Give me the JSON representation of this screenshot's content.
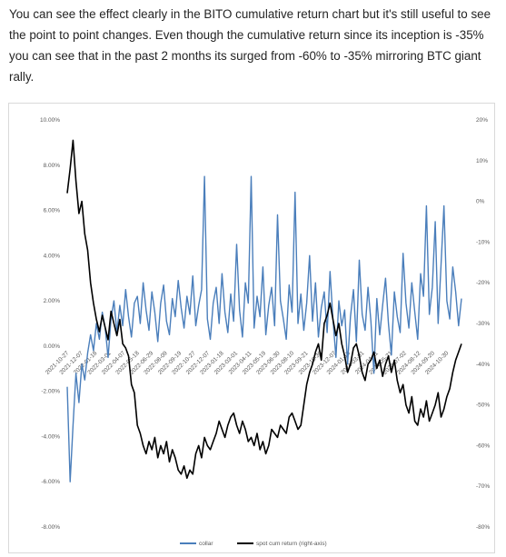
{
  "post": {
    "paragraph": "You can see the effect clearly in the BITO cumulative return chart but it's still useful to see the point to point changes. Even though the cumulative return since its inception is -35% you can see that in the past 2 months its surged from -60% to -35% mirroring BTC giant rally."
  },
  "colors": {
    "collar": "#4a7ebb",
    "spot": "#000000",
    "axis_text": "#595959",
    "frame": "#d9d9d9"
  },
  "chart_data": {
    "type": "line",
    "title": "",
    "left_axis": {
      "ticks": [
        "10.00%",
        "8.00%",
        "6.00%",
        "4.00%",
        "2.00%",
        "0.00%",
        "-2.00%",
        "-4.00%",
        "-6.00%",
        "-8.00%"
      ],
      "ylim": [
        -8,
        10
      ],
      "unit": "%"
    },
    "right_axis": {
      "ticks": [
        "20%",
        "10%",
        "0%",
        "-10%",
        "-20%",
        "-30%",
        "-40%",
        "-50%",
        "-60%",
        "-70%",
        "-80%"
      ],
      "ylim": [
        -80,
        20
      ],
      "unit": "%"
    },
    "x_ticks": [
      "2021-10-27",
      "2021-12-07",
      "2022-01-18",
      "2022-03-01",
      "2022-04-07",
      "2022-05-18",
      "2022-06-29",
      "2022-08-09",
      "2022-09-19",
      "2022-10-27",
      "2022-12-07",
      "2023-01-18",
      "2023-03-01",
      "2023-04-11",
      "2023-05-19",
      "2023-06-30",
      "2023-08-10",
      "2023-09-21",
      "2023-10-30",
      "2023-12-07",
      "2024-01-18",
      "2024-03-01",
      "2024-04-11",
      "2024-05-21",
      "2024-07-02",
      "2024-08-12",
      "2024-09-20",
      "2024-10-30"
    ],
    "legend": {
      "position": "bottom",
      "entries": [
        "collar",
        "spot cum return (right-axis)"
      ]
    },
    "grid": false,
    "series": [
      {
        "name": "collar",
        "axis": "left",
        "color": "#4a7ebb",
        "x": [
          0,
          2,
          4,
          6,
          8,
          10,
          12,
          14,
          16,
          18,
          20,
          22,
          24,
          26,
          28,
          30,
          32,
          34,
          36,
          38,
          40,
          42,
          44,
          46,
          48,
          50,
          52,
          54,
          56,
          58,
          60,
          62,
          64,
          66,
          68,
          70,
          72,
          74,
          76,
          78,
          80,
          82,
          84,
          86,
          88,
          90,
          92,
          94,
          96,
          98,
          100,
          102,
          104,
          106,
          108,
          110,
          112,
          114,
          116,
          118,
          120,
          122,
          124,
          126,
          128,
          130,
          132,
          134,
          136,
          138,
          140,
          142,
          144,
          146,
          148,
          150,
          152,
          154,
          156,
          158,
          160,
          162,
          164,
          166,
          168,
          170,
          172,
          174,
          176,
          178,
          180,
          182,
          184,
          186,
          188,
          190,
          192,
          194,
          196,
          198,
          200,
          202,
          204,
          206,
          208,
          210,
          212,
          214,
          216,
          218,
          220,
          222,
          224,
          226,
          228,
          230,
          232,
          234,
          236,
          238,
          240,
          242,
          244,
          246,
          248,
          250,
          252,
          254,
          256,
          258,
          260,
          262,
          264,
          266,
          268,
          270
        ],
        "values": [
          -1.8,
          -6.0,
          -3.5,
          -1.2,
          -2.5,
          -0.8,
          -1.5,
          -0.3,
          0.5,
          -0.2,
          1.0,
          0.3,
          1.5,
          0.8,
          -0.5,
          1.2,
          2.0,
          0.6,
          1.8,
          0.9,
          2.5,
          1.3,
          0.4,
          1.9,
          2.2,
          1.0,
          2.8,
          1.6,
          0.7,
          2.4,
          1.5,
          0.2,
          1.9,
          2.7,
          1.1,
          0.5,
          2.1,
          1.3,
          2.9,
          1.7,
          0.8,
          2.2,
          1.4,
          3.1,
          0.9,
          1.8,
          2.5,
          7.5,
          1.2,
          0.3,
          1.9,
          2.6,
          1.0,
          3.2,
          1.5,
          0.6,
          2.3,
          1.1,
          4.5,
          1.6,
          0.4,
          2.8,
          1.9,
          7.5,
          0.8,
          2.2,
          1.3,
          3.5,
          0.5,
          1.8,
          2.6,
          0.9,
          5.8,
          2.0,
          1.2,
          0.3,
          2.7,
          1.5,
          6.8,
          1.0,
          2.3,
          0.7,
          1.9,
          4.0,
          1.1,
          2.8,
          0.4,
          1.7,
          2.4,
          0.6,
          3.3,
          1.2,
          -0.5,
          2.0,
          0.9,
          1.6,
          -0.8,
          1.3,
          2.5,
          0.2,
          3.8,
          1.4,
          0.7,
          2.6,
          1.1,
          -1.2,
          2.1,
          0.5,
          1.8,
          3.0,
          1.0,
          -0.4,
          2.4,
          1.3,
          0.6,
          4.1,
          1.9,
          0.8,
          2.8,
          1.5,
          0.3,
          3.2,
          2.2,
          6.2,
          1.4,
          2.6,
          5.5,
          1.0,
          3.6,
          6.2,
          2.0,
          1.2,
          3.5,
          2.4,
          0.9,
          2.1
        ]
      },
      {
        "name": "spot cum return (right-axis)",
        "axis": "right",
        "color": "#000000",
        "x": [
          0,
          2,
          4,
          6,
          8,
          10,
          12,
          14,
          16,
          18,
          20,
          22,
          24,
          26,
          28,
          30,
          32,
          34,
          36,
          38,
          40,
          42,
          44,
          46,
          48,
          50,
          52,
          54,
          56,
          58,
          60,
          62,
          64,
          66,
          68,
          70,
          72,
          74,
          76,
          78,
          80,
          82,
          84,
          86,
          88,
          90,
          92,
          94,
          96,
          98,
          100,
          102,
          104,
          106,
          108,
          110,
          112,
          114,
          116,
          118,
          120,
          122,
          124,
          126,
          128,
          130,
          132,
          134,
          136,
          138,
          140,
          142,
          144,
          146,
          148,
          150,
          152,
          154,
          156,
          158,
          160,
          162,
          164,
          166,
          168,
          170,
          172,
          174,
          176,
          178,
          180,
          182,
          184,
          186,
          188,
          190,
          192,
          194,
          196,
          198,
          200,
          202,
          204,
          206,
          208,
          210,
          212,
          214,
          216,
          218,
          220,
          222,
          224,
          226,
          228,
          230,
          232,
          234,
          236,
          238,
          240,
          242,
          244,
          246,
          248,
          250,
          252,
          254,
          256,
          258,
          260,
          262,
          264,
          266,
          268,
          270
        ],
        "values": [
          2,
          8,
          15,
          5,
          -3,
          0,
          -8,
          -12,
          -20,
          -25,
          -29,
          -32,
          -28,
          -31,
          -34,
          -27,
          -30,
          -33,
          -29,
          -35,
          -36,
          -38,
          -45,
          -47,
          -55,
          -57,
          -60,
          -62,
          -59,
          -61,
          -58,
          -63,
          -60,
          -62,
          -59,
          -64,
          -61,
          -63,
          -66,
          -67,
          -65,
          -68,
          -66,
          -67,
          -62,
          -60,
          -63,
          -58,
          -60,
          -61,
          -59,
          -57,
          -54,
          -56,
          -58,
          -55,
          -53,
          -52,
          -55,
          -57,
          -54,
          -56,
          -59,
          -58,
          -60,
          -57,
          -61,
          -59,
          -62,
          -60,
          -56,
          -57,
          -58,
          -55,
          -56,
          -57,
          -53,
          -52,
          -54,
          -56,
          -55,
          -50,
          -45,
          -42,
          -40,
          -37,
          -35,
          -39,
          -30,
          -28,
          -25,
          -29,
          -33,
          -30,
          -35,
          -38,
          -42,
          -40,
          -36,
          -35,
          -38,
          -42,
          -44,
          -40,
          -39,
          -37,
          -41,
          -39,
          -43,
          -40,
          -38,
          -42,
          -39,
          -44,
          -47,
          -45,
          -50,
          -52,
          -48,
          -54,
          -55,
          -51,
          -53,
          -49,
          -54,
          -52,
          -50,
          -47,
          -53,
          -51,
          -48,
          -46,
          -42,
          -39,
          -37,
          -35
        ]
      }
    ]
  }
}
